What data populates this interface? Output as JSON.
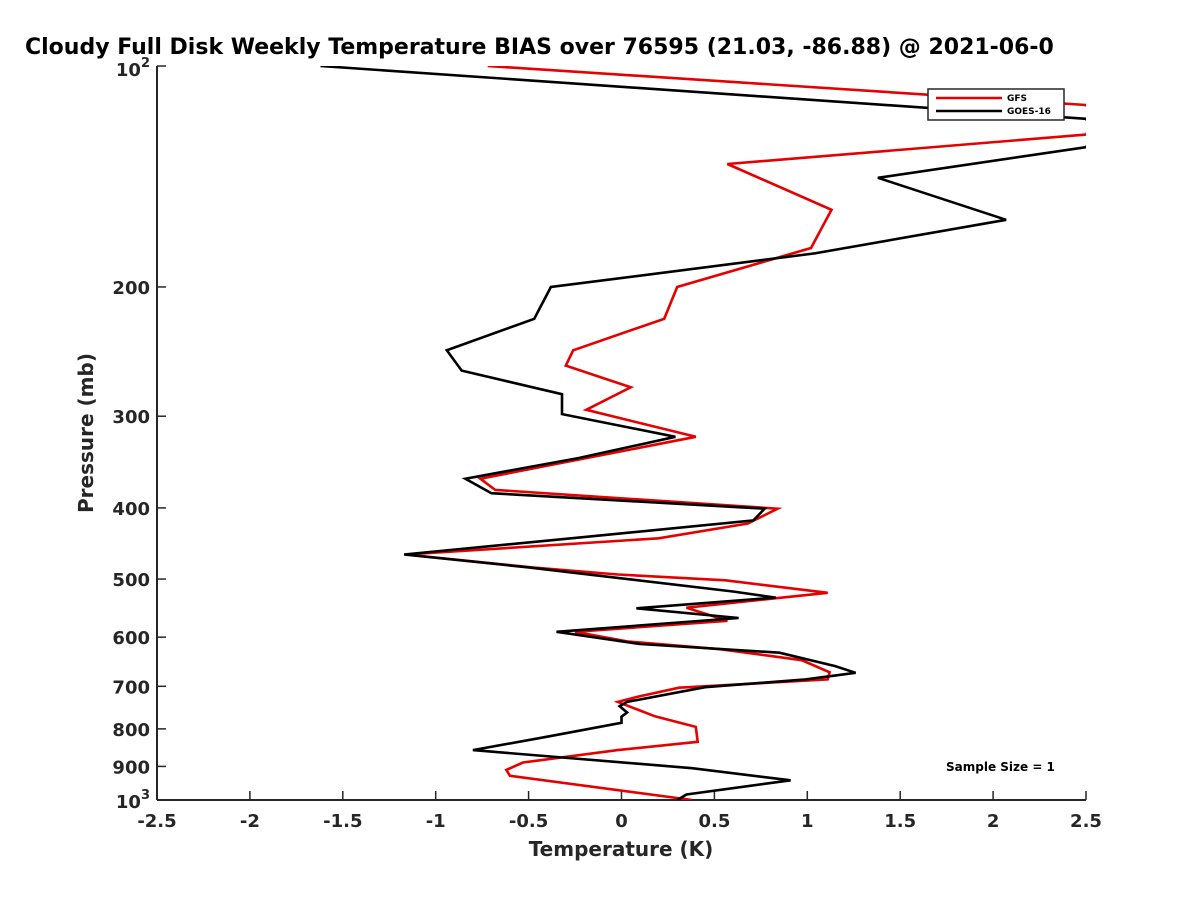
{
  "chart_data": {
    "type": "line",
    "title": "Cloudy Full Disk Weekly Temperature BIAS over 76595 (21.03, -86.88) @ 2021-06-0",
    "xlabel": "Temperature (K)",
    "ylabel": "Pressure (mb)",
    "xlim": [
      -2.5,
      2.5
    ],
    "ylim": [
      100,
      1000
    ],
    "yscale": "log",
    "yreverse": true,
    "x_ticks": [
      -2.5,
      -2,
      -1.5,
      -1,
      -0.5,
      0,
      0.5,
      1,
      1.5,
      2,
      2.5
    ],
    "x_tick_labels": [
      "-2.5",
      "-2",
      "-1.5",
      "-1",
      "-0.5",
      "0",
      "0.5",
      "1",
      "1.5",
      "2",
      "2.5"
    ],
    "y_ticks": [
      200,
      300,
      400,
      500,
      600,
      700,
      800,
      900
    ],
    "y_tick_labels": [
      "200",
      "300",
      "400",
      "500",
      "600",
      "700",
      "800",
      "900"
    ],
    "y_tick_top_base": "10",
    "y_tick_top_exp": "2",
    "y_tick_bottom_base": "10",
    "y_tick_bottom_exp": "3",
    "legend_position": "top-right",
    "annotation": "Sample Size = 1",
    "series": [
      {
        "name": "GFS",
        "color": "#e60000",
        "points": [
          [
            -0.72,
            100
          ],
          [
            2.5,
            113
          ],
          [
            2.55,
            118
          ],
          [
            2.5,
            124
          ],
          [
            0.57,
            136
          ],
          [
            1.13,
            157
          ],
          [
            1.02,
            177
          ],
          [
            0.3,
            200
          ],
          [
            0.23,
            221
          ],
          [
            -0.26,
            244
          ],
          [
            -0.3,
            256
          ],
          [
            0.05,
            274
          ],
          [
            -0.19,
            294
          ],
          [
            0.4,
            320
          ],
          [
            -0.76,
            365
          ],
          [
            -0.68,
            378
          ],
          [
            0.84,
            401
          ],
          [
            0.68,
            420
          ],
          [
            0.2,
            440
          ],
          [
            -1.16,
            463
          ],
          [
            -0.48,
            482
          ],
          [
            -0.02,
            493
          ],
          [
            0.56,
            502
          ],
          [
            1.11,
            522
          ],
          [
            0.35,
            547
          ],
          [
            0.57,
            570
          ],
          [
            -0.25,
            590
          ],
          [
            0.03,
            608
          ],
          [
            0.53,
            623
          ],
          [
            0.97,
            645
          ],
          [
            1.12,
            670
          ],
          [
            1.11,
            685
          ],
          [
            0.31,
            703
          ],
          [
            0.09,
            723
          ],
          [
            -0.02,
            735
          ],
          [
            0.18,
            769
          ],
          [
            0.4,
            795
          ],
          [
            0.41,
            833
          ],
          [
            -0.02,
            855
          ],
          [
            -0.53,
            889
          ],
          [
            -0.62,
            910
          ],
          [
            -0.6,
            927
          ],
          [
            0.38,
            1000
          ]
        ]
      },
      {
        "name": "GOES-16",
        "color": "#000000",
        "points": [
          [
            -1.62,
            100
          ],
          [
            2.5,
            118
          ],
          [
            2.55,
            124
          ],
          [
            2.5,
            129
          ],
          [
            1.38,
            142
          ],
          [
            2.07,
            162
          ],
          [
            1.04,
            180
          ],
          [
            -0.38,
            200
          ],
          [
            -0.47,
            221
          ],
          [
            -0.94,
            244
          ],
          [
            -0.86,
            260
          ],
          [
            -0.32,
            280
          ],
          [
            -0.32,
            298
          ],
          [
            0.29,
            320
          ],
          [
            -0.23,
            342
          ],
          [
            -0.84,
            365
          ],
          [
            -0.7,
            382
          ],
          [
            0.77,
            401
          ],
          [
            0.71,
            416
          ],
          [
            -0.27,
            440
          ],
          [
            -1.17,
            463
          ],
          [
            -0.5,
            482
          ],
          [
            0.6,
            520
          ],
          [
            0.83,
            530
          ],
          [
            0.08,
            548
          ],
          [
            0.63,
            565
          ],
          [
            -0.35,
            590
          ],
          [
            0.1,
            613
          ],
          [
            0.85,
            630
          ],
          [
            1.15,
            657
          ],
          [
            1.26,
            671
          ],
          [
            0.99,
            685
          ],
          [
            0.45,
            702
          ],
          [
            0.03,
            735
          ],
          [
            -0.01,
            745
          ],
          [
            0.03,
            760
          ],
          [
            0.0,
            770
          ],
          [
            0.0,
            785
          ],
          [
            -0.4,
            820
          ],
          [
            -0.8,
            855
          ],
          [
            0.38,
            905
          ],
          [
            0.91,
            940
          ],
          [
            0.35,
            983
          ],
          [
            0.3,
            1000
          ]
        ]
      }
    ]
  }
}
